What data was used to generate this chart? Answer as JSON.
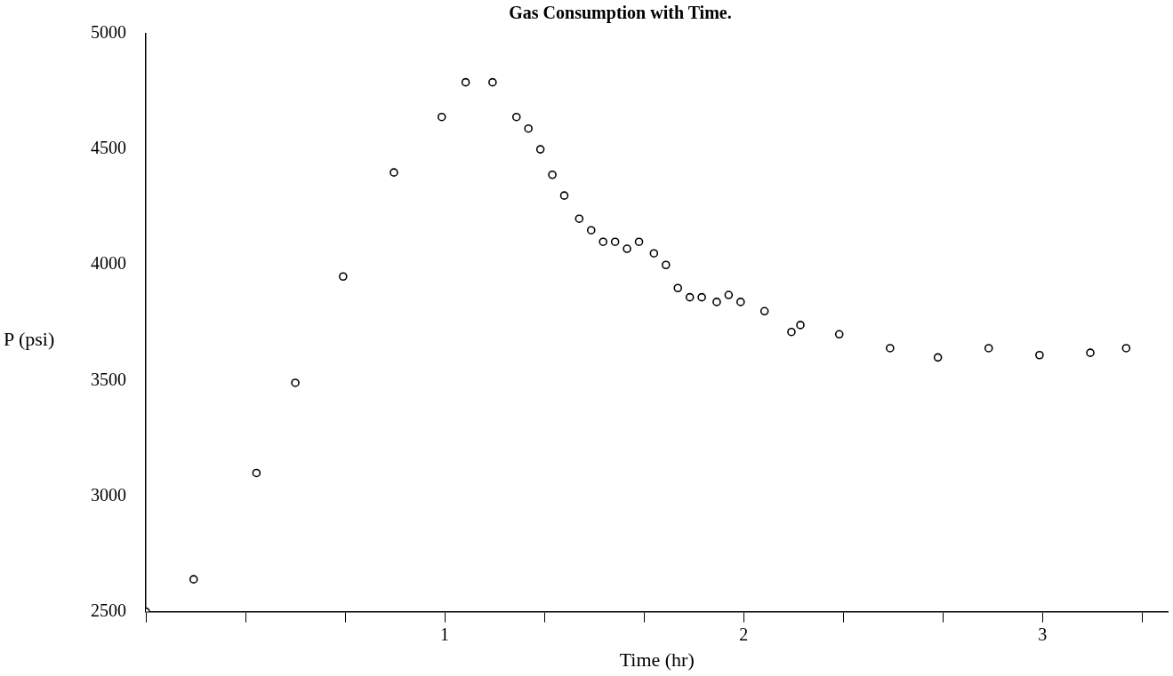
{
  "chart_data": {
    "type": "scatter",
    "title": "Gas Consumption with Time.",
    "xlabel": "Time (hr)",
    "ylabel": "P (psi)",
    "series": [
      {
        "color": "#000000",
        "x": [
          0,
          0.16,
          0.37,
          0.5,
          0.66,
          0.83,
          0.99,
          1.07,
          1.16,
          1.24,
          1.28,
          1.32,
          1.36,
          1.4,
          1.45,
          1.49,
          1.53,
          1.57,
          1.61,
          1.65,
          1.7,
          1.74,
          1.78,
          1.82,
          1.86,
          1.91,
          1.95,
          1.99,
          2.07,
          2.16,
          2.19,
          2.32,
          2.49,
          2.65,
          2.82,
          2.99,
          3.16,
          3.28
        ],
        "values": [
          2500,
          2640,
          3100,
          3490,
          3950,
          4400,
          4640,
          4790,
          4790,
          4640,
          4590,
          4500,
          4390,
          4300,
          4200,
          4150,
          4100,
          4100,
          4070,
          4100,
          4050,
          4000,
          3900,
          3860,
          3860,
          3840,
          3870,
          3840,
          3800,
          3710,
          3740,
          3700,
          3640,
          3600,
          3640,
          3610,
          3620,
          3640
        ]
      }
    ],
    "xlim": [
      0,
      3.42
    ],
    "xticks": [
      {
        "value": 0,
        "label": null
      },
      {
        "value": 0.3333,
        "label": null
      },
      {
        "value": 0.6667,
        "label": null
      },
      1,
      {
        "value": 1.3333,
        "label": null
      },
      {
        "value": 1.6667,
        "label": null
      },
      2,
      {
        "value": 2.3333,
        "label": null
      },
      {
        "value": 2.6667,
        "label": null
      },
      3,
      {
        "value": 3.3333,
        "label": null
      }
    ],
    "ylim": [
      2500,
      5000
    ],
    "yticks": [
      2500,
      3000,
      3500,
      4000,
      4500,
      5000
    ],
    "grid": false,
    "legend": false,
    "marker": "circle"
  }
}
